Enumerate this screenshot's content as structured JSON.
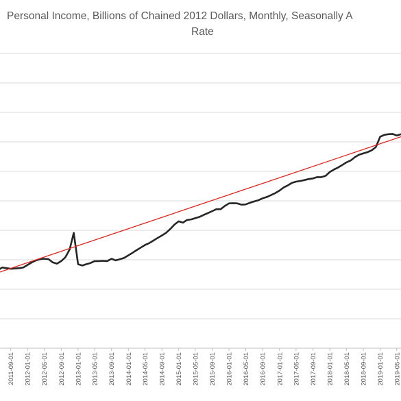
{
  "chart_data": {
    "type": "line",
    "title_lines": [
      "Personal Income, Billions of Chained 2012 Dollars, Monthly, Seasonally A",
      "Rate"
    ],
    "xlabel": "",
    "ylabel": "",
    "grid": true,
    "legend": "none",
    "x_tick_labels": [
      "2011-09-01",
      "2012-01-01",
      "2012-05-01",
      "2012-09-01",
      "2013-01-01",
      "2013-05-01",
      "2013-09-01",
      "2014-01-01",
      "2014-05-01",
      "2014-09-01",
      "2015-01-01",
      "2015-05-01",
      "2015-09-01",
      "2016-01-01",
      "2016-05-01",
      "2016-09-01",
      "2017-01-01",
      "2017-05-01",
      "2017-09-01",
      "2018-01-01",
      "2018-05-01",
      "2018-09-01",
      "2019-01-01",
      "2019-05-01"
    ],
    "series": [
      {
        "color": "#262626",
        "x": [
          "2011-06-01",
          "2011-07-01",
          "2011-08-01",
          "2011-09-01",
          "2011-10-01",
          "2011-11-01",
          "2011-12-01",
          "2012-01-01",
          "2012-02-01",
          "2012-03-01",
          "2012-04-01",
          "2012-05-01",
          "2012-06-01",
          "2012-07-01",
          "2012-08-01",
          "2012-09-01",
          "2012-10-01",
          "2012-11-01",
          "2012-12-01",
          "2013-01-01",
          "2013-02-01",
          "2013-03-01",
          "2013-04-01",
          "2013-05-01",
          "2013-06-01",
          "2013-07-01",
          "2013-08-01",
          "2013-09-01",
          "2013-10-01",
          "2013-11-01",
          "2013-12-01",
          "2014-01-01",
          "2014-02-01",
          "2014-03-01",
          "2014-04-01",
          "2014-05-01",
          "2014-06-01",
          "2014-07-01",
          "2014-08-01",
          "2014-09-01",
          "2014-10-01",
          "2014-11-01",
          "2014-12-01",
          "2015-01-01",
          "2015-02-01",
          "2015-03-01",
          "2015-04-01",
          "2015-05-01",
          "2015-06-01",
          "2015-07-01",
          "2015-08-01",
          "2015-09-01",
          "2015-10-01",
          "2015-11-01",
          "2015-12-01",
          "2016-01-01",
          "2016-02-01",
          "2016-03-01",
          "2016-04-01",
          "2016-05-01",
          "2016-06-01",
          "2016-07-01",
          "2016-08-01",
          "2016-09-01",
          "2016-10-01",
          "2016-11-01",
          "2016-12-01",
          "2017-01-01",
          "2017-02-01",
          "2017-03-01",
          "2017-04-01",
          "2017-05-01",
          "2017-06-01",
          "2017-07-01",
          "2017-08-01",
          "2017-09-01",
          "2017-10-01",
          "2017-11-01",
          "2017-12-01",
          "2018-01-01",
          "2018-02-01",
          "2018-03-01",
          "2018-04-01",
          "2018-05-01",
          "2018-06-01",
          "2018-07-01",
          "2018-08-01",
          "2018-09-01",
          "2018-10-01",
          "2018-11-01",
          "2018-12-01",
          "2019-01-01",
          "2019-02-01",
          "2019-03-01",
          "2019-04-01",
          "2019-05-01",
          "2019-06-01"
        ],
        "values": [
          2.6,
          2.8,
          2.75,
          2.7,
          2.72,
          2.75,
          2.8,
          3.0,
          3.2,
          3.35,
          3.45,
          3.48,
          3.45,
          3.2,
          3.1,
          3.3,
          3.6,
          4.2,
          5.5,
          3.05,
          2.95,
          3.05,
          3.15,
          3.3,
          3.3,
          3.32,
          3.3,
          3.48,
          3.35,
          3.45,
          3.55,
          3.75,
          3.95,
          4.15,
          4.35,
          4.55,
          4.7,
          4.9,
          5.1,
          5.3,
          5.5,
          5.8,
          6.15,
          6.4,
          6.3,
          6.5,
          6.55,
          6.65,
          6.75,
          6.9,
          7.05,
          7.2,
          7.35,
          7.35,
          7.6,
          7.8,
          7.82,
          7.8,
          7.7,
          7.72,
          7.85,
          7.95,
          8.05,
          8.2,
          8.3,
          8.45,
          8.6,
          8.8,
          9.05,
          9.2,
          9.4,
          9.5,
          9.55,
          9.62,
          9.7,
          9.75,
          9.85,
          9.85,
          9.95,
          10.25,
          10.45,
          10.6,
          10.8,
          11.0,
          11.15,
          11.4,
          11.6,
          11.7,
          11.8,
          11.95,
          12.2,
          13.0,
          13.15,
          13.2,
          13.22,
          13.1,
          13.2
        ]
      },
      {
        "color": "#e0231a",
        "x": [
          "2011-06-01",
          "2019-06-01"
        ],
        "values": [
          2.4,
          13.0
        ]
      }
    ],
    "ylim": [
      -3.5,
      19.5
    ],
    "xlim": [
      "2011-06-15",
      "2019-06-01"
    ]
  }
}
